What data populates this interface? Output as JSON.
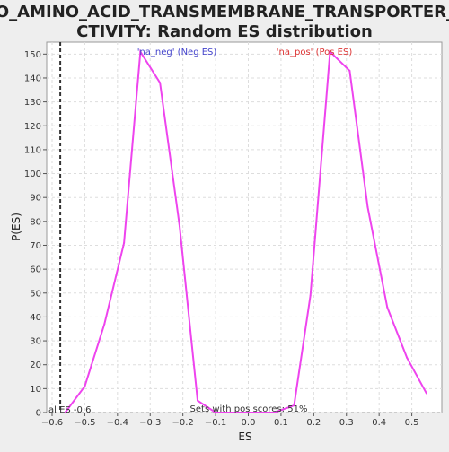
{
  "chart_data": {
    "type": "line",
    "title_line1": "GO_AMINO_ACID_TRANSMEMBRANE_TRANSPORTER_A",
    "title_line2": "CTIVITY: Random ES distribution",
    "xlabel": "ES",
    "ylabel": "P(ES)",
    "xlim": [
      -0.6,
      0.6
    ],
    "ylim": [
      0,
      155
    ],
    "x_ticks": [
      -0.6,
      -0.5,
      -0.4,
      -0.3,
      -0.2,
      -0.1,
      0.0,
      0.1,
      0.2,
      0.3,
      0.4,
      0.5
    ],
    "x_tick_labels": [
      "−0.6",
      "−0.5",
      "−0.4",
      "−0.3",
      "−0.2",
      "−0.1",
      "0.0",
      "0.1",
      "0.2",
      "0.3",
      "0.4",
      "0.5"
    ],
    "y_ticks": [
      0,
      10,
      20,
      30,
      40,
      50,
      60,
      70,
      80,
      90,
      100,
      110,
      120,
      130,
      140,
      150
    ],
    "grid": true,
    "series": [
      {
        "color": "#ee44ee",
        "x": [
          -0.56,
          -0.5,
          -0.44,
          -0.38,
          -0.33,
          -0.27,
          -0.21,
          -0.155,
          -0.1,
          -0.04,
          0.02,
          0.08,
          0.14,
          0.19,
          0.25,
          0.31,
          0.365,
          0.425,
          0.485,
          0.545
        ],
        "y": [
          0,
          11,
          37,
          71,
          151,
          138,
          78,
          5,
          0,
          0,
          0,
          0,
          3,
          49,
          151,
          143,
          86,
          44,
          23,
          8
        ]
      }
    ],
    "vline": {
      "x": -0.575,
      "style": "dashed",
      "color": "#333333"
    },
    "annotations": {
      "neg_label": "'na_neg' (Neg ES)",
      "neg_color": "#4444cc",
      "pos_label": "'na_pos' (Pos ES)",
      "pos_color": "#dd3333",
      "real_es": "al ES -0.6",
      "pos_scores": "Sets with pos scores: 51%"
    },
    "background": "#ffffff",
    "page_background": "#eeeeee"
  }
}
